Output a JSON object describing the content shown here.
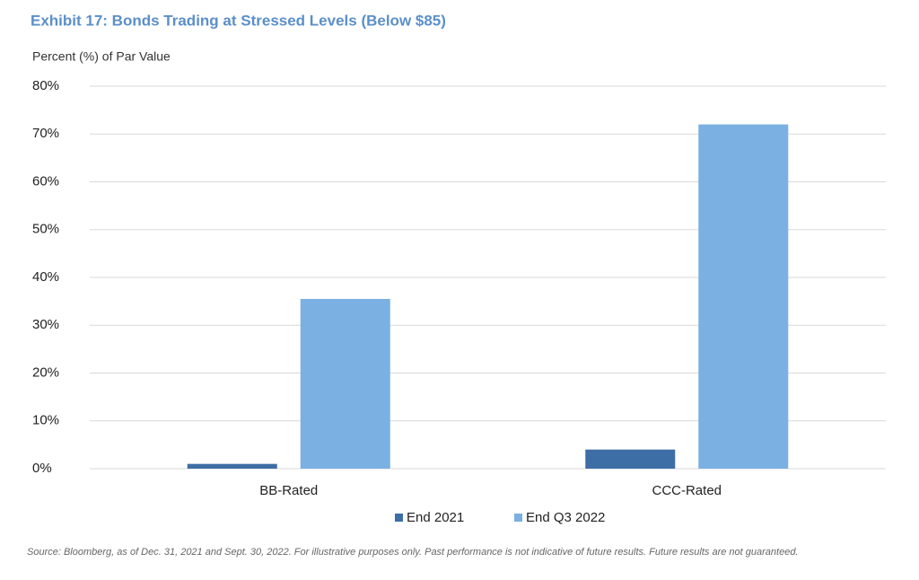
{
  "chart_data": {
    "type": "bar",
    "title": "Exhibit 17: Bonds Trading at Stressed Levels (Below $85)",
    "y_label": "Percent (%) of Par Value",
    "categories": [
      "BB-Rated",
      "CCC-Rated"
    ],
    "series": [
      {
        "name": "End 2021",
        "color": "#3e6ea6",
        "values": [
          1,
          4
        ]
      },
      {
        "name": "End Q3 2022",
        "color": "#7ab0e2",
        "values": [
          35.5,
          72
        ]
      }
    ],
    "ylim": [
      0,
      80
    ],
    "yticks": [
      {
        "value": 0,
        "label": "0%"
      },
      {
        "value": 10,
        "label": "10%"
      },
      {
        "value": 20,
        "label": "20%"
      },
      {
        "value": 30,
        "label": "30%"
      },
      {
        "value": 40,
        "label": "40%"
      },
      {
        "value": 50,
        "label": "50%"
      },
      {
        "value": 60,
        "label": "60%"
      },
      {
        "value": 70,
        "label": "70%"
      },
      {
        "value": 80,
        "label": "80%"
      }
    ],
    "grid": true,
    "legend": "bottom",
    "source": "Source: Bloomberg, as of Dec. 31, 2021 and Sept. 30, 2022. For illustrative purposes only. Past performance is not indicative of future results. Future results are not guaranteed."
  }
}
